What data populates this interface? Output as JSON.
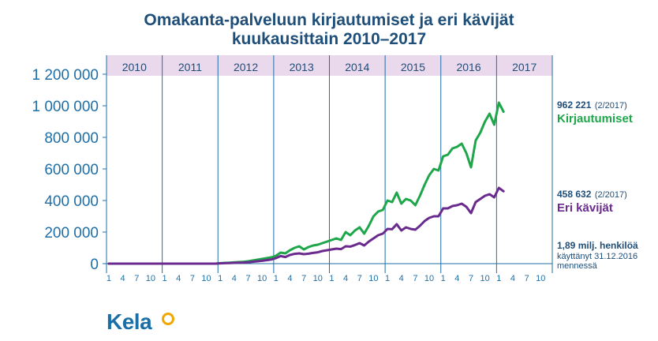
{
  "title": {
    "line1": "Omakanta-palveluun kirjautumiset ja eri kävijät",
    "line2": "kuukausittain 2010–2017"
  },
  "annotations": {
    "kirj_value": "962 221",
    "kirj_date": "(2/2017)",
    "kirj_label": "Kirjautumiset",
    "eri_value": "458 632",
    "eri_date": "(2/2017)",
    "eri_label": "Eri kävijät",
    "total_bold": "1,89 milj. henkilöä",
    "total_line1": "käyttänyt 31.12.2016",
    "total_line2": "mennessä"
  },
  "logo": {
    "text": "Kela"
  },
  "colors": {
    "kirjautumiset": "#1ea64a",
    "eri_kavijat": "#6a2a8e",
    "axis": "#1f6fa6",
    "year_band": "#ead8ec"
  },
  "chart_data": {
    "type": "line",
    "title": "Omakanta-palveluun kirjautumiset ja eri kävijät kuukausittain 2010–2017",
    "years": [
      "2010",
      "2011",
      "2012",
      "2013",
      "2014",
      "2015",
      "2016",
      "2017"
    ],
    "month_ticks": [
      "1",
      "4",
      "7",
      "10"
    ],
    "yticks": [
      "0",
      "200 000",
      "400 000",
      "600 000",
      "800 000",
      "1 000 000",
      "1 200 000"
    ],
    "ylim": [
      0,
      1200000
    ],
    "xlim": [
      0,
      95
    ],
    "grid": false,
    "series": [
      {
        "name": "Kirjautumiset",
        "values": [
          0,
          0,
          0,
          0,
          0,
          0,
          0,
          0,
          0,
          0,
          0,
          0,
          0,
          0,
          0,
          0,
          0,
          0,
          0,
          0,
          0,
          0,
          0,
          0,
          3000,
          5000,
          6000,
          8000,
          10000,
          12000,
          15000,
          20000,
          25000,
          30000,
          35000,
          40000,
          50000,
          70000,
          65000,
          85000,
          100000,
          110000,
          90000,
          105000,
          115000,
          120000,
          130000,
          140000,
          150000,
          160000,
          150000,
          200000,
          180000,
          210000,
          230000,
          190000,
          240000,
          300000,
          330000,
          340000,
          400000,
          390000,
          450000,
          380000,
          410000,
          400000,
          370000,
          430000,
          500000,
          560000,
          600000,
          590000,
          680000,
          690000,
          730000,
          740000,
          760000,
          700000,
          610000,
          780000,
          830000,
          900000,
          950000,
          880000,
          1020000,
          962221
        ],
        "color": "#1ea64a"
      },
      {
        "name": "Eri kävijät",
        "values": [
          0,
          0,
          0,
          0,
          0,
          0,
          0,
          0,
          0,
          0,
          0,
          0,
          0,
          0,
          0,
          0,
          0,
          0,
          0,
          0,
          0,
          0,
          0,
          0,
          2000,
          3000,
          4000,
          5000,
          6000,
          7000,
          9000,
          12000,
          15000,
          18000,
          22000,
          26000,
          35000,
          48000,
          42000,
          55000,
          62000,
          65000,
          60000,
          63000,
          68000,
          72000,
          80000,
          85000,
          90000,
          95000,
          92000,
          110000,
          108000,
          118000,
          130000,
          115000,
          140000,
          160000,
          180000,
          190000,
          220000,
          218000,
          250000,
          210000,
          230000,
          220000,
          215000,
          240000,
          270000,
          290000,
          300000,
          300000,
          350000,
          350000,
          365000,
          370000,
          380000,
          360000,
          320000,
          390000,
          410000,
          430000,
          440000,
          420000,
          480000,
          458632
        ],
        "color": "#6a2a8e"
      }
    ]
  }
}
